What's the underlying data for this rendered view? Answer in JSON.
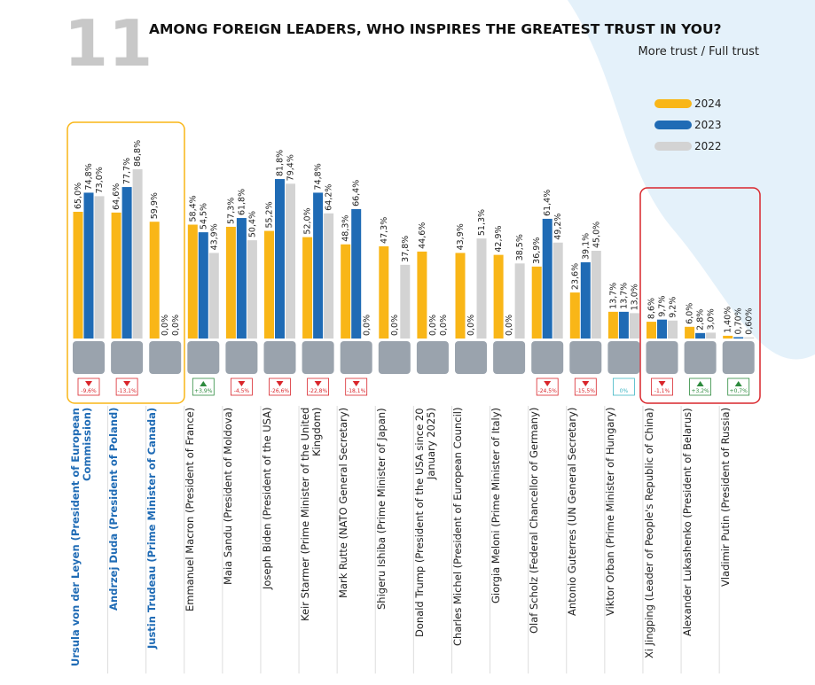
{
  "page_number": "11",
  "chart_data": {
    "type": "bar",
    "title": "AMONG FOREIGN LEADERS, WHO INSPIRES THE GREATEST TRUST IN YOU?",
    "subtitle": "More trust / Full trust",
    "categories": [
      "Ursula von der Leyen (President of European Commission)",
      "Andrzej Duda (President of Poland)",
      "Justin Trudeau (Prime Minister of Canada)",
      "Emmanuel Macron (President of France)",
      "Maia Sandu (President of Moldova)",
      "Joseph Biden (President of the USA)",
      "Keir Starmer (Prime Minister of the United Kingdom)",
      "Mark Rutte (NATO General Secretary)",
      "Shigeru Ishiba (Prime Minister of Japan)",
      "Donald Trump (President of the USA since 20 January 2025)",
      "Charles Michel (President of European Council)",
      "Giorgia Meloni (Prime Minister of Italy)",
      "Olaf Scholz (Federal Chancellor of Germany)",
      "Antonio Guterres (UN General Secretary)",
      "Viktor Orban (Prime Minister of Hungary)",
      "Xi Jingping (Leader of People's Republic of China)",
      "Alexander Lukashenko (President of Belarus)",
      "Vladimir Putin (President of Russia)"
    ],
    "series": [
      {
        "name": "2024",
        "color": "#f9b617",
        "values": [
          65.0,
          64.6,
          59.9,
          58.4,
          57.3,
          55.2,
          52.0,
          48.3,
          47.3,
          44.6,
          43.9,
          42.9,
          36.9,
          23.6,
          13.7,
          8.6,
          6.0,
          1.4
        ],
        "value_labels": [
          "65,0%",
          "64,6%",
          "59,9%",
          "58,4%",
          "57,3%",
          "55,2%",
          "52,0%",
          "48,3%",
          "47,3%",
          "44,6%",
          "43,9%",
          "42,9%",
          "36,9%",
          "23,6%",
          "13,7%",
          "8,6%",
          "6,0%",
          "1,40%"
        ]
      },
      {
        "name": "2023",
        "color": "#1f6bb5",
        "values": [
          74.8,
          77.7,
          0.0,
          54.5,
          61.8,
          81.8,
          74.8,
          66.4,
          0.0,
          0.0,
          0.0,
          0.0,
          61.4,
          39.1,
          13.7,
          9.7,
          2.8,
          0.7
        ],
        "value_labels": [
          "74,8%",
          "77,7%",
          "0,0%",
          "54,5%",
          "61,8%",
          "81,8%",
          "74,8%",
          "66,4%",
          "0,0%",
          "0,0%",
          "0,0%",
          "0,0%",
          "61,4%",
          "39,1%",
          "13,7%",
          "9,7%",
          "2,8%",
          "0,70%"
        ]
      },
      {
        "name": "2022",
        "color": "#d3d3d3",
        "values": [
          73.0,
          86.8,
          0.0,
          43.9,
          50.4,
          79.4,
          64.2,
          0.0,
          37.8,
          0.0,
          51.3,
          38.5,
          49.2,
          45.0,
          13.0,
          9.2,
          3.0,
          0.6
        ],
        "value_labels": [
          "73,0%",
          "86,8%",
          "0,0%",
          "43,9%",
          "50,4%",
          "79,4%",
          "64,2%",
          "0,0%",
          "37,8%",
          "0,0%",
          "51,3%",
          "38,5%",
          "49,2%",
          "45,0%",
          "13,0%",
          "9,2%",
          "3,0%",
          "0,60%"
        ]
      }
    ],
    "change_labels": [
      "-9,6%",
      "-13,1%",
      null,
      "+3,9%",
      "-4,5%",
      "-26,6%",
      "-22,8%",
      "-18,1%",
      null,
      null,
      null,
      null,
      "-24,5%",
      "-15,5%",
      "0%",
      "-1,1%",
      "+3,2%",
      "+0,7%"
    ]
  }
}
